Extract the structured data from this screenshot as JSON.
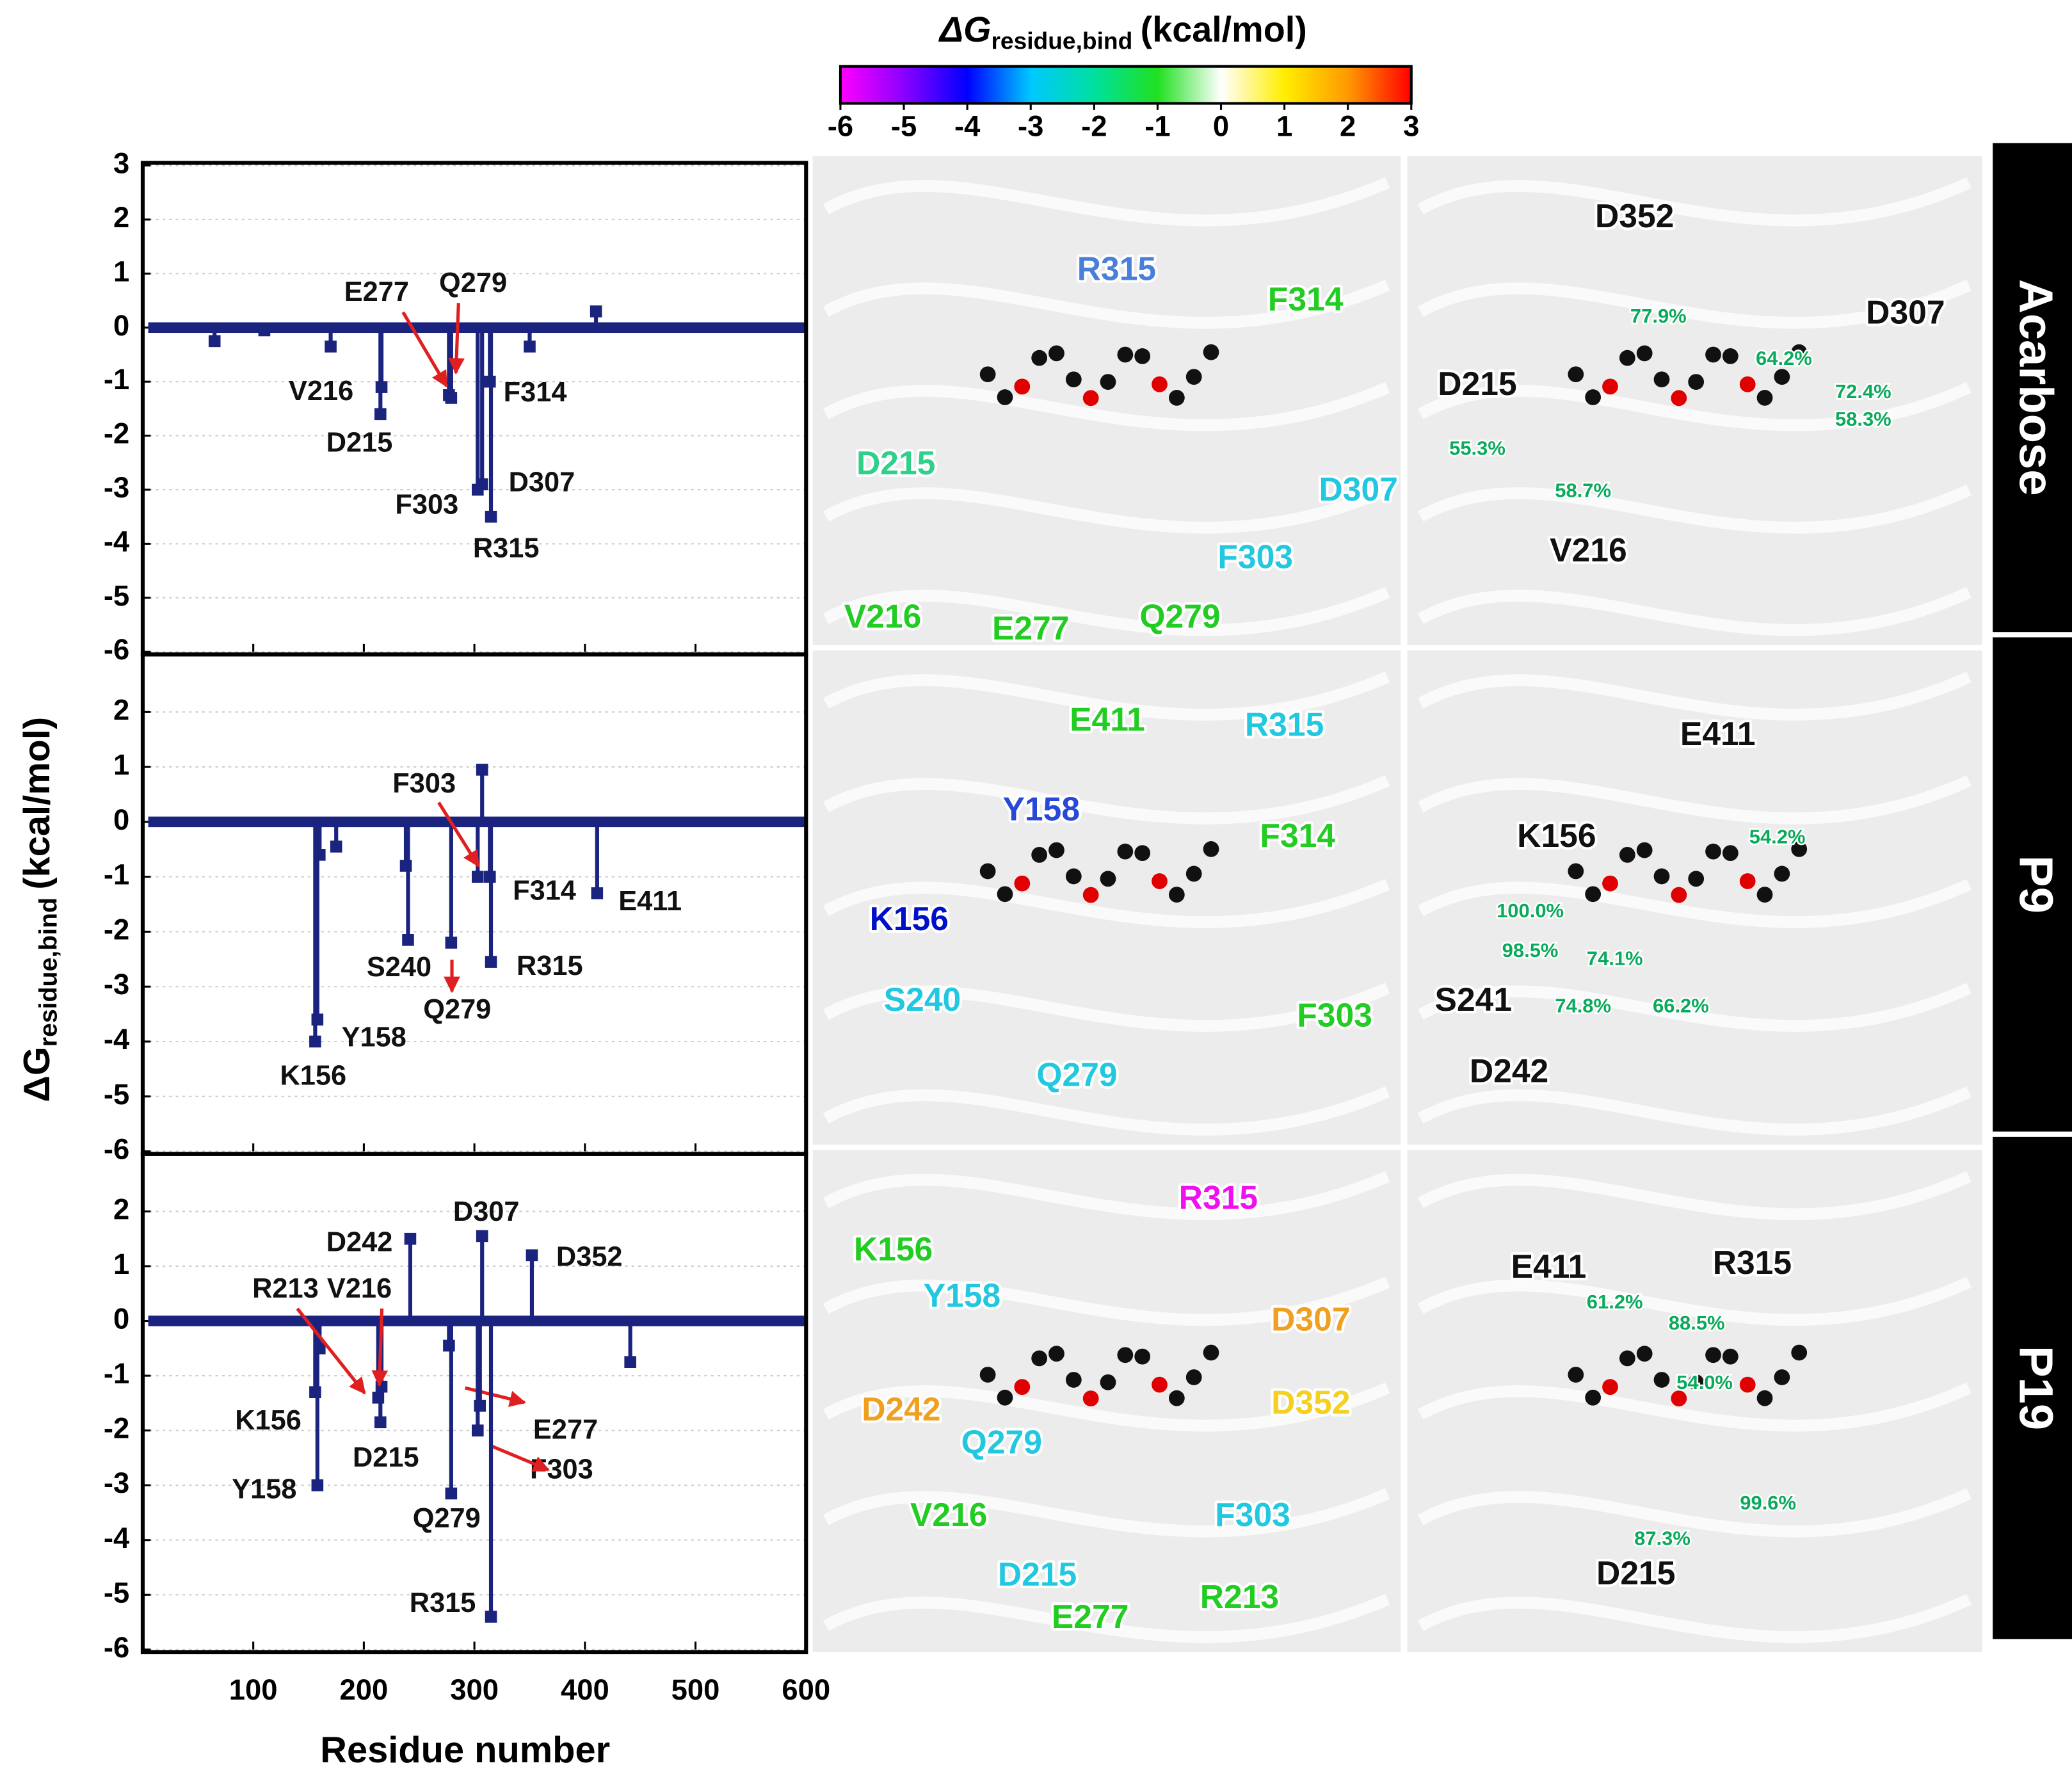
{
  "axes": {
    "ylabel": [
      "ΔG",
      "residue,bind",
      "(kcal/mol)"
    ],
    "xlabel": "Residue number"
  },
  "colorbar": {
    "title": [
      "ΔG",
      "residue,bind",
      "(kcal/mol)"
    ],
    "lim": [
      -6,
      3
    ],
    "ticks": [
      -6,
      -5,
      -4,
      -3,
      -2,
      -1,
      0,
      1,
      2,
      3
    ],
    "colors": [
      "#ff00ff",
      "#8a00ff",
      "#0000ff",
      "#00c8ff",
      "#00e0a0",
      "#20e020",
      "#ffffff",
      "#ffee00",
      "#ff9900",
      "#ff0000"
    ]
  },
  "chart_data": [
    {
      "type": "stem",
      "color": "#1a237e",
      "xlim": [
        0,
        600
      ],
      "xticks": [
        100,
        200,
        300,
        400,
        500,
        600
      ],
      "ylim": [
        -6,
        3
      ],
      "yticks": [
        -6,
        -5,
        -4,
        -3,
        -2,
        -1,
        0,
        1,
        2,
        3
      ],
      "x": [
        65,
        110,
        170,
        215,
        216,
        277,
        279,
        303,
        307,
        314,
        315,
        350,
        410
      ],
      "values": [
        -0.25,
        -0.05,
        -0.35,
        -1.6,
        -1.1,
        -1.25,
        -1.3,
        -3.0,
        -2.9,
        -1.0,
        -3.5,
        -0.35,
        0.3
      ],
      "labels": [
        null,
        null,
        null,
        "D215",
        "V216",
        "E277",
        "Q279",
        "F303",
        "D307",
        "F314",
        "R315",
        null,
        null
      ]
    },
    {
      "type": "stem",
      "color": "#1a237e",
      "xlim": [
        0,
        600
      ],
      "xticks": [
        100,
        200,
        300,
        400,
        500,
        600
      ],
      "ylim": [
        -6,
        3
      ],
      "yticks": [
        -6,
        -5,
        -4,
        -3,
        -2,
        -1,
        0,
        1,
        2
      ],
      "x": [
        156,
        158,
        160,
        175,
        238,
        240,
        279,
        303,
        307,
        314,
        315,
        411
      ],
      "values": [
        -4.0,
        -3.6,
        -0.6,
        -0.45,
        -0.8,
        -2.15,
        -2.2,
        -1.0,
        0.95,
        -1.0,
        -2.55,
        -1.3
      ],
      "labels": [
        "K156",
        "Y158",
        null,
        null,
        null,
        "S240",
        "Q279",
        "F303",
        null,
        "F314",
        "R315",
        "E411"
      ]
    },
    {
      "type": "stem",
      "color": "#1a237e",
      "xlim": [
        0,
        600
      ],
      "xticks": [
        100,
        200,
        300,
        400,
        500,
        600
      ],
      "ylim": [
        -6,
        3
      ],
      "yticks": [
        -6,
        -5,
        -4,
        -3,
        -2,
        -1,
        0,
        1,
        2
      ],
      "x": [
        156,
        158,
        160,
        213,
        215,
        216,
        242,
        277,
        279,
        303,
        305,
        307,
        315,
        352,
        441
      ],
      "values": [
        -1.3,
        -3.0,
        -0.5,
        -1.4,
        -1.85,
        -1.2,
        1.5,
        -0.45,
        -3.15,
        -2.0,
        -1.55,
        1.55,
        -5.4,
        1.2,
        -0.75
      ],
      "labels": [
        "K156",
        "Y158",
        null,
        "R213",
        "D215",
        "V216",
        "D242",
        "E277",
        "Q279",
        "F303",
        null,
        "D307",
        "R315",
        "D352",
        null
      ]
    }
  ],
  "structures": [
    {
      "name": "Acarbose",
      "energy_labels": [
        {
          "text": "R315",
          "color": "#4a7fd9"
        },
        {
          "text": "F314",
          "color": "#22cc22"
        },
        {
          "text": "D215",
          "color": "#2fd08a"
        },
        {
          "text": "D307",
          "color": "#22c8e0"
        },
        {
          "text": "F303",
          "color": "#22c8e0"
        },
        {
          "text": "V216",
          "color": "#22cc22"
        },
        {
          "text": "E277",
          "color": "#22cc22"
        },
        {
          "text": "Q279",
          "color": "#22cc22"
        }
      ],
      "hbond_residues": [
        "D352",
        "D307",
        "D215",
        "V216"
      ],
      "hbond_occupancy": [
        "77.9%",
        "64.2%",
        "72.4%",
        "58.3%",
        "55.3%",
        "58.7%"
      ]
    },
    {
      "name": "P9",
      "energy_labels": [
        {
          "text": "E411",
          "color": "#22cc22"
        },
        {
          "text": "R315",
          "color": "#22c8e0"
        },
        {
          "text": "Y158",
          "color": "#2848d8"
        },
        {
          "text": "F314",
          "color": "#22cc22"
        },
        {
          "text": "K156",
          "color": "#0010c8"
        },
        {
          "text": "S240",
          "color": "#22c8e0"
        },
        {
          "text": "F303",
          "color": "#22cc22"
        },
        {
          "text": "Q279",
          "color": "#22c8e0"
        }
      ],
      "hbond_residues": [
        "E411",
        "K156",
        "S241",
        "D242"
      ],
      "hbond_occupancy": [
        "54.2%",
        "100.0%",
        "98.5%",
        "74.1%",
        "74.8%",
        "66.2%"
      ]
    },
    {
      "name": "P19",
      "energy_labels": [
        {
          "text": "R315",
          "color": "#ee10ee"
        },
        {
          "text": "K156",
          "color": "#22cc22"
        },
        {
          "text": "Y158",
          "color": "#22c8e0"
        },
        {
          "text": "D307",
          "color": "#f0a020"
        },
        {
          "text": "D242",
          "color": "#f0a020"
        },
        {
          "text": "D352",
          "color": "#f5d020"
        },
        {
          "text": "Q279",
          "color": "#22c8e0"
        },
        {
          "text": "V216",
          "color": "#22cc22"
        },
        {
          "text": "F303",
          "color": "#22c8e0"
        },
        {
          "text": "D215",
          "color": "#22c8e0"
        },
        {
          "text": "R213",
          "color": "#22cc22"
        },
        {
          "text": "E277",
          "color": "#22cc22"
        }
      ],
      "hbond_residues": [
        "E411",
        "R315",
        "D215"
      ],
      "hbond_occupancy": [
        "61.2%",
        "88.5%",
        "54.0%",
        "99.6%",
        "87.3%"
      ]
    }
  ]
}
